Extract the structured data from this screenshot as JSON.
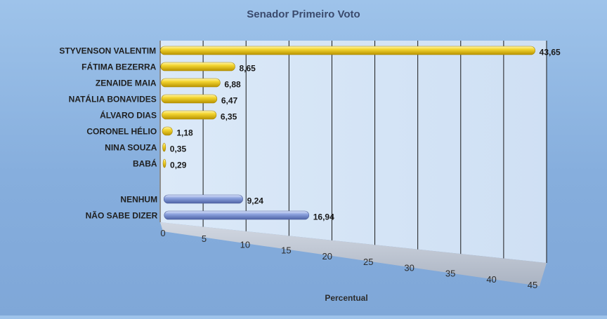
{
  "chart_data": {
    "type": "bar",
    "orientation": "horizontal",
    "title": "Senador Primeiro Voto",
    "xlabel": "Percentual",
    "ylabel": "",
    "xlim": [
      0,
      45
    ],
    "xticks": [
      "0",
      "5",
      "10",
      "15",
      "20",
      "25",
      "30",
      "35",
      "40",
      "45"
    ],
    "grid": true,
    "legend": "none",
    "categories": [
      "STYVENSON VALENTIM",
      "FÁTIMA BEZERRA",
      "ZENAIDE MAIA",
      "NATÁLIA BONAVIDES",
      "ÁLVARO DIAS",
      "CORONEL HÉLIO",
      "NINA SOUZA",
      "BABÁ",
      "NENHUM",
      "NÃO SABE DIZER"
    ],
    "values": [
      43.65,
      8.65,
      6.88,
      6.47,
      6.35,
      1.18,
      0.35,
      0.29,
      9.24,
      16.94
    ],
    "value_labels": [
      "43,65",
      "8,65",
      "6,88",
      "6,47",
      "6,35",
      "1,18",
      "0,35",
      "0,29",
      "9,24",
      "16,94"
    ],
    "colors": [
      "#e6c21a",
      "#e6c21a",
      "#e6c21a",
      "#e6c21a",
      "#e6c21a",
      "#e6c21a",
      "#e6c21a",
      "#e6c21a",
      "#7f95d2",
      "#7f95d2"
    ]
  }
}
